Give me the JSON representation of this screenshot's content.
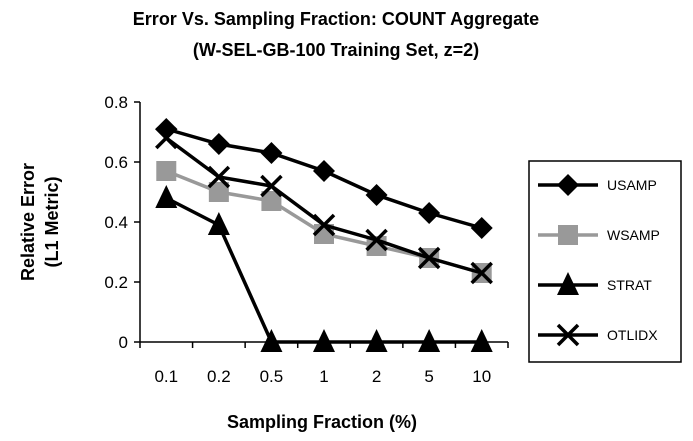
{
  "chart_data": {
    "type": "line",
    "title": "Error Vs. Sampling Fraction: COUNT Aggregate",
    "subtitle": "(W-SEL-GB-100 Training Set, z=2)",
    "xlabel": "Sampling Fraction (%)",
    "ylabel_line1": "Relative Error",
    "ylabel_line2": "(L1 Metric)",
    "categories": [
      "0.1",
      "0.2",
      "0.5",
      "1",
      "2",
      "5",
      "10"
    ],
    "ylim": [
      0,
      0.8
    ],
    "yticks": [
      0,
      0.2,
      0.4,
      0.6,
      0.8
    ],
    "ytick_labels": [
      "0",
      "0.2",
      "0.4",
      "0.6",
      "0.8"
    ],
    "grid": false,
    "legend_position": "right",
    "series": [
      {
        "name": "USAMP",
        "marker": "diamond",
        "color": "#000000",
        "values": [
          0.71,
          0.66,
          0.63,
          0.57,
          0.49,
          0.43,
          0.38
        ]
      },
      {
        "name": "WSAMP",
        "marker": "square",
        "color": "#999999",
        "values": [
          0.57,
          0.5,
          0.47,
          0.36,
          0.32,
          0.28,
          0.23
        ]
      },
      {
        "name": "STRAT",
        "marker": "triangle",
        "color": "#000000",
        "values": [
          0.48,
          0.39,
          0.0,
          0.0,
          0.0,
          0.0,
          0.0
        ]
      },
      {
        "name": "OTLIDX",
        "marker": "x",
        "color": "#000000",
        "values": [
          0.68,
          0.55,
          0.52,
          0.39,
          0.34,
          0.28,
          0.23
        ]
      }
    ]
  }
}
